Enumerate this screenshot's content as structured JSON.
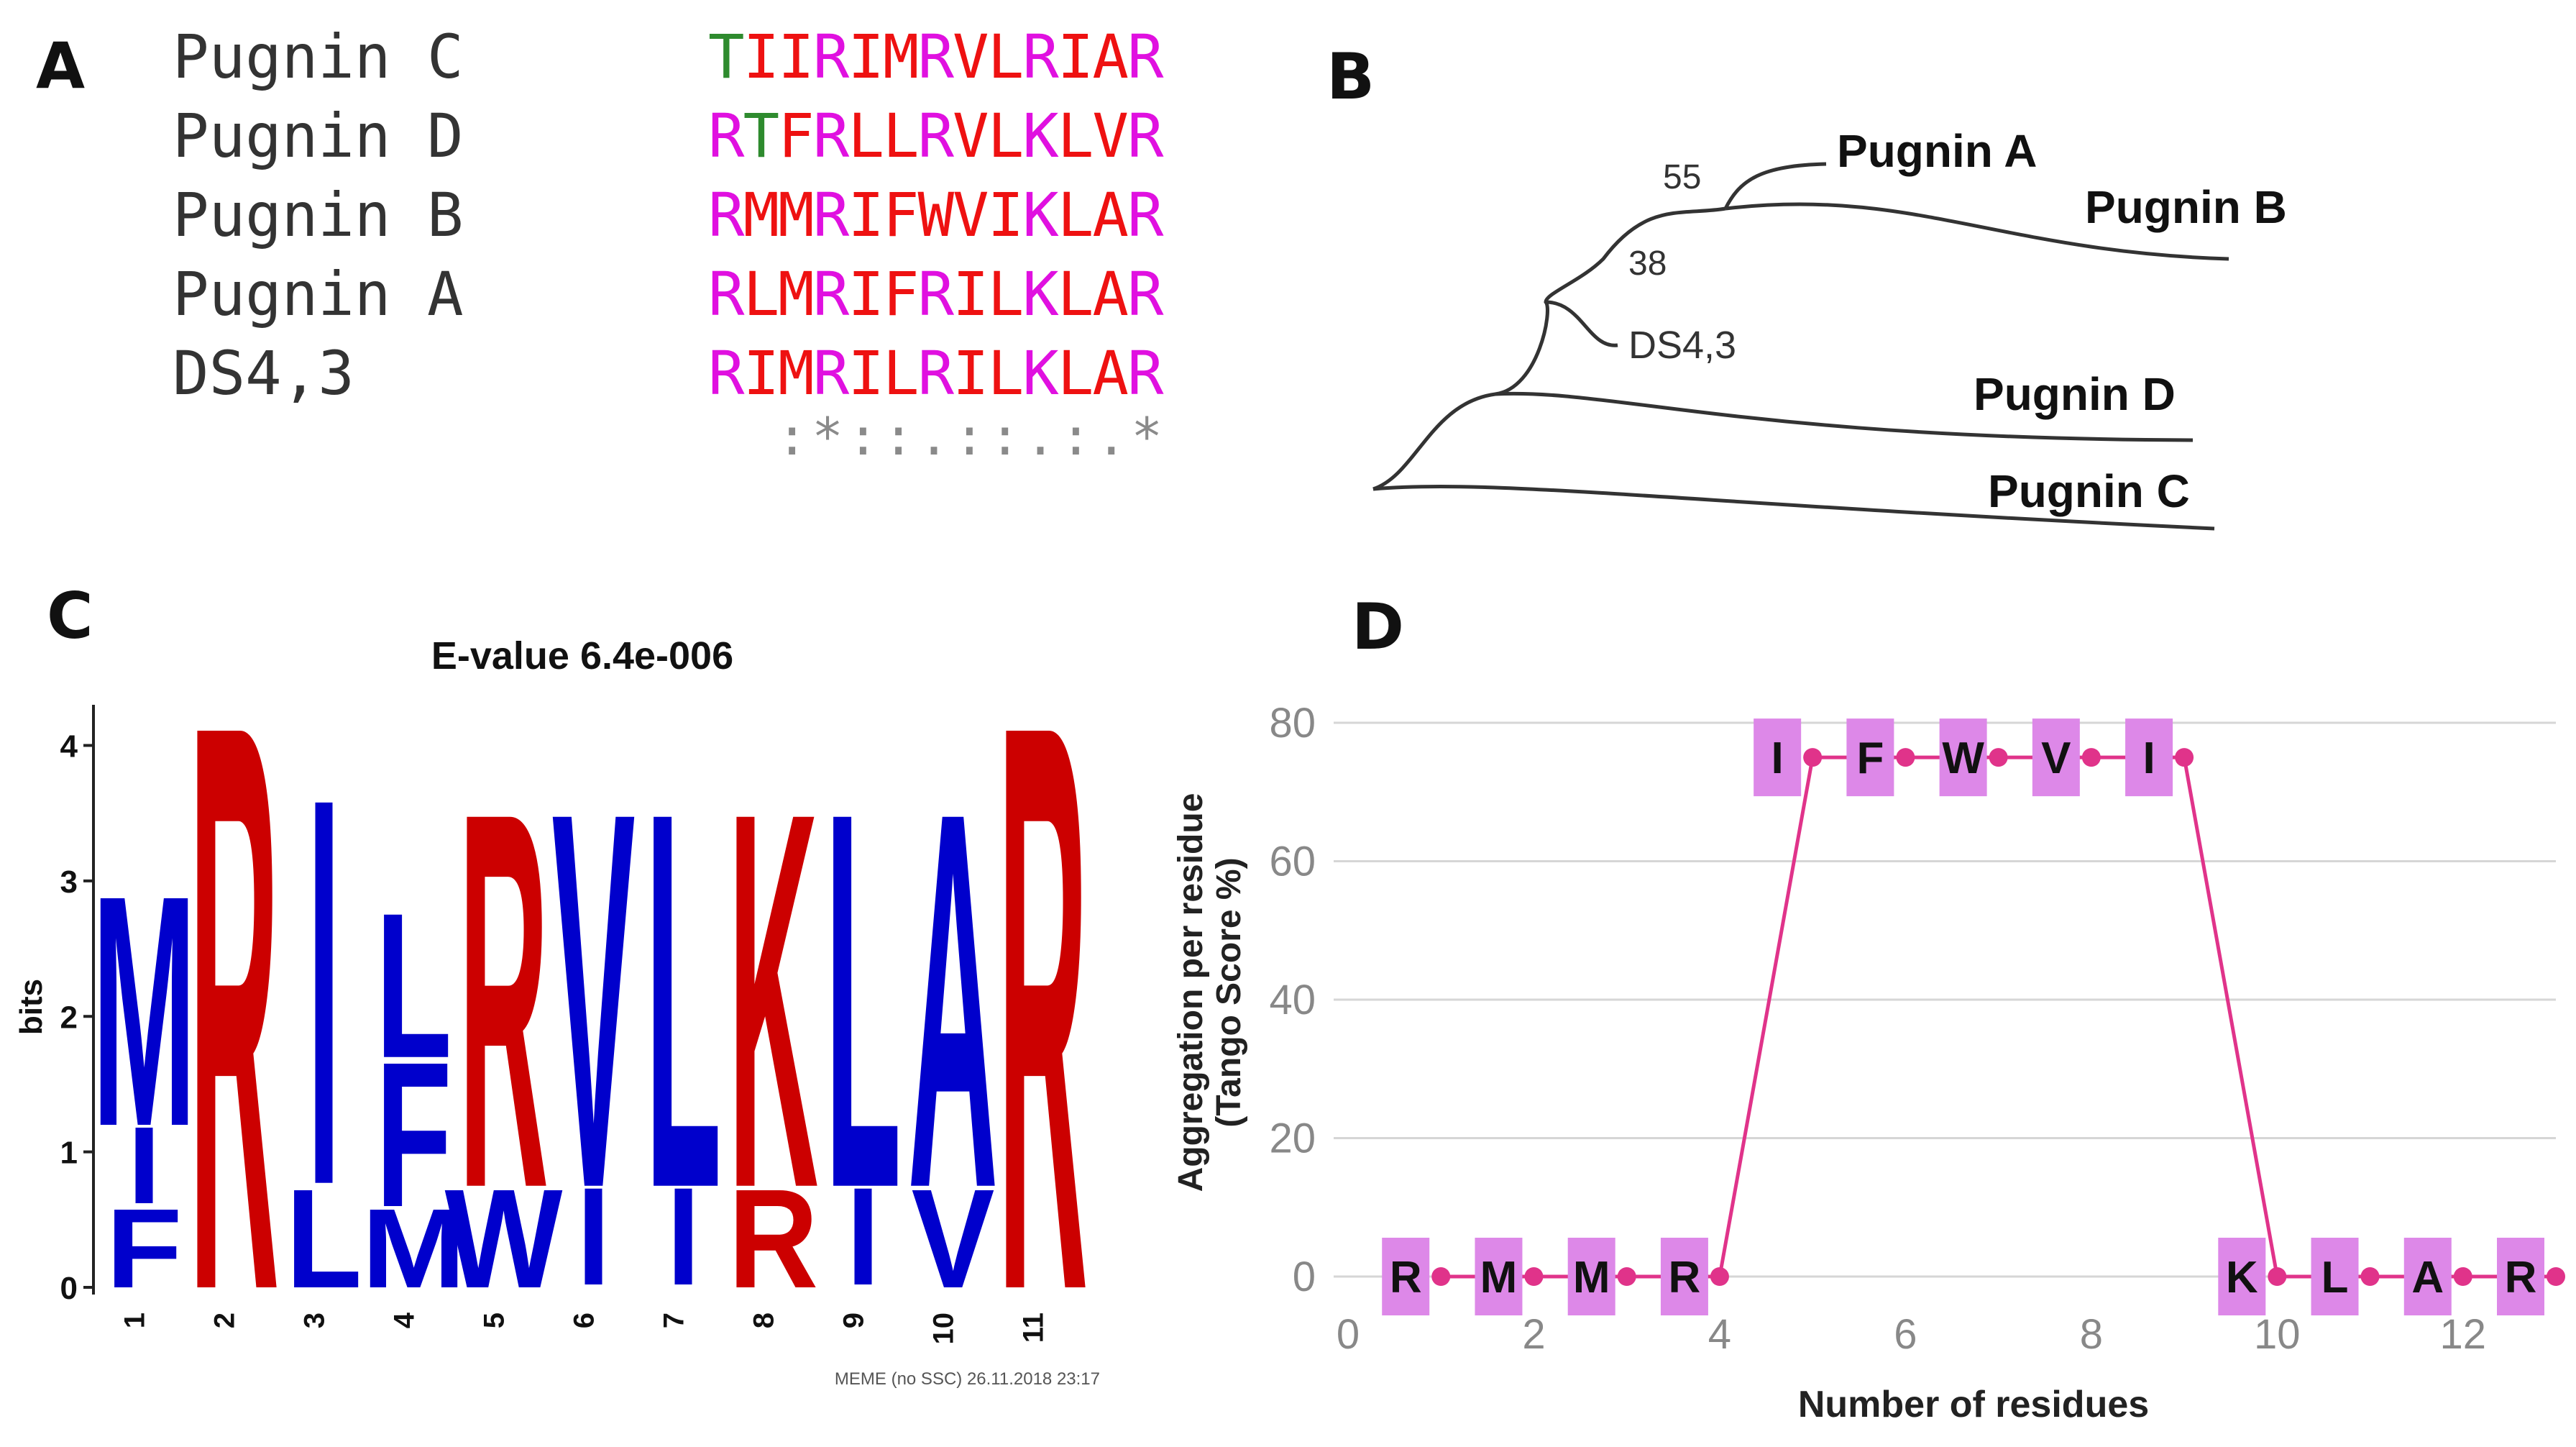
{
  "panelA": {
    "label": "A",
    "rows": [
      {
        "name": "Pugnin C",
        "sequence": "TIIRIMRVLRIAR"
      },
      {
        "name": "Pugnin D",
        "sequence": "RTFRLLRVLKLVR"
      },
      {
        "name": "Pugnin B",
        "sequence": "RMMRIFWVIKLAR"
      },
      {
        "name": "Pugnin A",
        "sequence": "RLMRIFRILKLAR"
      },
      {
        "name": "DS4,3",
        "sequence": "RIMRILRILKLAR"
      }
    ],
    "consensus": ":*::.::.:.*",
    "colors": {
      "green": "#2e8b2e",
      "red": "#ee1111",
      "magenta": "#e010e0",
      "red_letters": "FILMVW",
      "magenta_letters": "RK",
      "green_letters": "T"
    }
  },
  "panelB": {
    "label": "B",
    "leaves": [
      "Pugnin A",
      "Pugnin B",
      "DS4,3",
      "Pugnin D",
      "Pugnin C"
    ],
    "bootstrap": [
      "55",
      "38"
    ]
  },
  "panelC": {
    "label": "C",
    "title": "E-value 6.4e-006",
    "ylabel": "bits",
    "footer": "MEME (no SSC) 26.11.2018 23:17",
    "colors": {
      "red": "#cc0000",
      "blue": "#0000cc"
    },
    "chart_data": {
      "type": "sequence-logo",
      "title": "E-value 6.4e-006",
      "ylabel": "bits",
      "ylim": [
        0,
        4.3
      ],
      "yticks": [
        "0",
        "1",
        "2",
        "3",
        "4"
      ],
      "positions": [
        {
          "pos": "1",
          "letters": [
            {
              "l": "F",
              "bits": 0.6,
              "color": "blue"
            },
            {
              "l": "I",
              "bits": 0.6,
              "color": "blue"
            },
            {
              "l": "M",
              "bits": 1.75,
              "color": "blue"
            }
          ]
        },
        {
          "pos": "2",
          "letters": [
            {
              "l": "R",
              "bits": 4.3,
              "color": "red"
            }
          ]
        },
        {
          "pos": "3",
          "letters": [
            {
              "l": "L",
              "bits": 0.75,
              "color": "blue"
            },
            {
              "l": "I",
              "bits": 2.85,
              "color": "blue"
            }
          ]
        },
        {
          "pos": "4",
          "letters": [
            {
              "l": "M",
              "bits": 0.6,
              "color": "blue"
            },
            {
              "l": "F",
              "bits": 1.1,
              "color": "blue"
            },
            {
              "l": "L",
              "bits": 1.1,
              "color": "blue"
            }
          ]
        },
        {
          "pos": "5",
          "letters": [
            {
              "l": "W",
              "bits": 0.75,
              "color": "blue"
            },
            {
              "l": "R",
              "bits": 2.85,
              "color": "red"
            }
          ]
        },
        {
          "pos": "6",
          "letters": [
            {
              "l": "I",
              "bits": 0.75,
              "color": "blue"
            },
            {
              "l": "V",
              "bits": 2.85,
              "color": "blue"
            }
          ]
        },
        {
          "pos": "7",
          "letters": [
            {
              "l": "I",
              "bits": 0.75,
              "color": "blue"
            },
            {
              "l": "L",
              "bits": 2.85,
              "color": "blue"
            }
          ]
        },
        {
          "pos": "8",
          "letters": [
            {
              "l": "R",
              "bits": 0.75,
              "color": "red"
            },
            {
              "l": "K",
              "bits": 2.85,
              "color": "red"
            }
          ]
        },
        {
          "pos": "9",
          "letters": [
            {
              "l": "I",
              "bits": 0.75,
              "color": "blue"
            },
            {
              "l": "L",
              "bits": 2.85,
              "color": "blue"
            }
          ]
        },
        {
          "pos": "10",
          "letters": [
            {
              "l": "V",
              "bits": 0.75,
              "color": "blue"
            },
            {
              "l": "A",
              "bits": 2.85,
              "color": "blue"
            }
          ]
        },
        {
          "pos": "11",
          "letters": [
            {
              "l": "R",
              "bits": 4.3,
              "color": "red"
            }
          ]
        }
      ]
    }
  },
  "panelD": {
    "label": "D",
    "box_color": "#dd88e8",
    "line_color": "#e0338a",
    "chart_data": {
      "type": "line",
      "xlabel": "Number of residues",
      "ylabel_line1": "Aggregation per residue",
      "ylabel_line2": "(Tango Score %)",
      "xlim": [
        0,
        13
      ],
      "ylim": [
        0,
        80
      ],
      "xticks": [
        "0",
        "2",
        "4",
        "6",
        "8",
        "10",
        "12"
      ],
      "yticks": [
        "0",
        "20",
        "40",
        "60",
        "80"
      ],
      "x": [
        1,
        2,
        3,
        4,
        5,
        6,
        7,
        8,
        9,
        10,
        11,
        12,
        13
      ],
      "y": [
        0,
        0,
        0,
        0,
        75,
        75,
        75,
        75,
        75,
        0,
        0,
        0,
        0
      ],
      "residues": [
        "R",
        "M",
        "M",
        "R",
        "I",
        "F",
        "W",
        "V",
        "I",
        "K",
        "L",
        "A",
        "R"
      ]
    }
  }
}
